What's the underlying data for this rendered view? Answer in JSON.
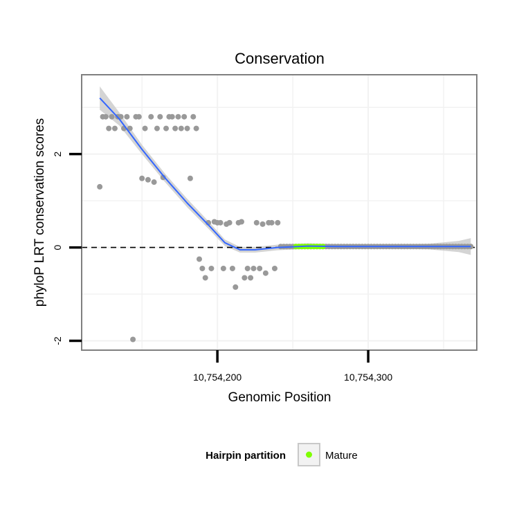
{
  "chart_data": {
    "type": "scatter",
    "title": "Conservation",
    "xlabel": "Genomic Position",
    "ylabel": "phyloP LRT conservation scores",
    "xlim": [
      10754110,
      10754372
    ],
    "ylim": [
      -2.2,
      3.7
    ],
    "x_ticks": [
      {
        "value": 10754200,
        "label": "10,754,200"
      },
      {
        "value": 10754300,
        "label": "10,754,300"
      }
    ],
    "y_ticks": [
      {
        "value": -2,
        "label": "-2"
      },
      {
        "value": 0,
        "label": "0"
      },
      {
        "value": 2,
        "label": "2"
      }
    ],
    "grid": true,
    "reference_line": {
      "y": 0,
      "style": "dashed"
    },
    "colors": {
      "points": "#999999",
      "mature": "#7fff00",
      "smooth": "#3366ff",
      "ribbon": "#cccccc",
      "panel_border": "#7f7f7f",
      "grid": "#f2f2f2"
    },
    "series": [
      {
        "group": "hairpin",
        "x": [
          10754122,
          10754124,
          10754126,
          10754128,
          10754130,
          10754132,
          10754134,
          10754136,
          10754138,
          10754140,
          10754142,
          10754144,
          10754146,
          10754148,
          10754150,
          10754152,
          10754154,
          10754156,
          10754158,
          10754160,
          10754162,
          10754164,
          10754166,
          10754168,
          10754170,
          10754172,
          10754174,
          10754176,
          10754178,
          10754180,
          10754182,
          10754184,
          10754186,
          10754188,
          10754190,
          10754192,
          10754194,
          10754196,
          10754198,
          10754200,
          10754202,
          10754204,
          10754206,
          10754208,
          10754210,
          10754212,
          10754214,
          10754216,
          10754218,
          10754220,
          10754222,
          10754224,
          10754226,
          10754228,
          10754230,
          10754232,
          10754234,
          10754236,
          10754238,
          10754240,
          10754242,
          10754244,
          10754246,
          10754248,
          10754250,
          10754252,
          10754254,
          10754256,
          10754258,
          10754260,
          10754262,
          10754264,
          10754266,
          10754268,
          10754270,
          10754272,
          10754274,
          10754276,
          10754278,
          10754280,
          10754282,
          10754284,
          10754286,
          10754288,
          10754290,
          10754292,
          10754294,
          10754296,
          10754298,
          10754300,
          10754302,
          10754304,
          10754306,
          10754308,
          10754310,
          10754312,
          10754314,
          10754316,
          10754318,
          10754320,
          10754322,
          10754324,
          10754326,
          10754328,
          10754330,
          10754332,
          10754334,
          10754336,
          10754338,
          10754340,
          10754342,
          10754344,
          10754346,
          10754348,
          10754350,
          10754352,
          10754354,
          10754356,
          10754358,
          10754360,
          10754362,
          10754364,
          10754366,
          10754368
        ],
        "y": [
          1.3,
          2.8,
          2.8,
          2.55,
          2.8,
          2.55,
          2.8,
          2.8,
          2.55,
          2.8,
          2.55,
          -1.97,
          2.8,
          2.8,
          1.48,
          2.55,
          1.45,
          2.8,
          1.4,
          2.55,
          2.8,
          1.5,
          2.55,
          2.8,
          2.8,
          2.55,
          2.8,
          2.55,
          2.8,
          2.55,
          1.48,
          2.8,
          2.55,
          -0.25,
          -0.45,
          -0.65,
          0.53,
          -0.45,
          0.55,
          0.53,
          0.53,
          -0.45,
          0.5,
          0.53,
          -0.45,
          -0.85,
          0.53,
          0.55,
          -0.65,
          -0.45,
          -0.65,
          -0.45,
          0.53,
          -0.45,
          0.5,
          -0.55,
          0.53,
          0.53,
          -0.45,
          0.53,
          0.02,
          0.02,
          0.02,
          0.02,
          0.02,
          0.02,
          0.02,
          0.02,
          0.02,
          0.02,
          0.02,
          0.02,
          0.02,
          0.02,
          0.02,
          0.02,
          0.02,
          0.02,
          0.02,
          0.02,
          0.02,
          0.02,
          0.02,
          0.02,
          0.02,
          0.02,
          0.02,
          0.02,
          0.02,
          0.02,
          0.02,
          0.02,
          0.02,
          0.02,
          0.02,
          0.02,
          0.02,
          0.02,
          0.02,
          0.02,
          0.02,
          0.02,
          0.02,
          0.02,
          0.02,
          0.02,
          0.02,
          0.02,
          0.02,
          0.02,
          0.02,
          0.02,
          0.02,
          0.02,
          0.02,
          0.02,
          0.02,
          0.02,
          0.02,
          0.02,
          0.02,
          0.02,
          0.02,
          0.02
        ]
      },
      {
        "group": "mature",
        "name": "Mature",
        "x": [
          10754252,
          10754254,
          10754256,
          10754258,
          10754260,
          10754262,
          10754264,
          10754266,
          10754268,
          10754270
        ],
        "y": [
          0.02,
          0.02,
          0.02,
          0.02,
          0.02,
          0.02,
          0.02,
          0.02,
          0.02,
          0.02
        ]
      }
    ],
    "smooth": {
      "x": [
        10754122,
        10754135,
        10754150,
        10754165,
        10754180,
        10754195,
        10754205,
        10754215,
        10754225,
        10754240,
        10754260,
        10754280,
        10754300,
        10754320,
        10754340,
        10754360,
        10754368
      ],
      "y": [
        3.2,
        2.75,
        2.1,
        1.5,
        0.95,
        0.45,
        0.1,
        -0.05,
        -0.05,
        0.0,
        0.03,
        0.02,
        0.02,
        0.02,
        0.02,
        0.02,
        0.02
      ],
      "se": [
        0.25,
        0.14,
        0.1,
        0.09,
        0.09,
        0.08,
        0.07,
        0.06,
        0.06,
        0.06,
        0.06,
        0.05,
        0.05,
        0.05,
        0.06,
        0.12,
        0.18
      ]
    },
    "legend": {
      "title": "Hairpin partition",
      "entries": [
        {
          "label": "Mature",
          "color": "#7fff00"
        }
      ],
      "placement": "bottom"
    }
  }
}
